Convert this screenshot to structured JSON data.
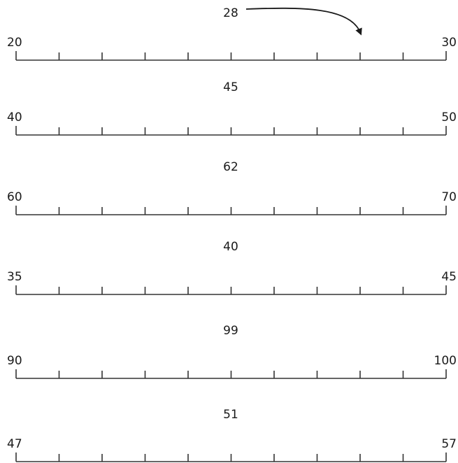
{
  "number_lines": [
    {
      "target": "28",
      "start": "20",
      "end": "30",
      "ticks": 11,
      "target_tick_index": 8,
      "arrow_shown": true
    },
    {
      "target": "45",
      "start": "40",
      "end": "50",
      "ticks": 11,
      "arrow_shown": false
    },
    {
      "target": "62",
      "start": "60",
      "end": "70",
      "ticks": 11,
      "arrow_shown": false
    },
    {
      "target": "40",
      "start": "35",
      "end": "45",
      "ticks": 11,
      "arrow_shown": false
    },
    {
      "target": "99",
      "start": "90",
      "end": "100",
      "ticks": 11,
      "arrow_shown": false
    },
    {
      "target": "51",
      "start": "47",
      "end": "57",
      "ticks": 11,
      "arrow_shown": false
    }
  ]
}
